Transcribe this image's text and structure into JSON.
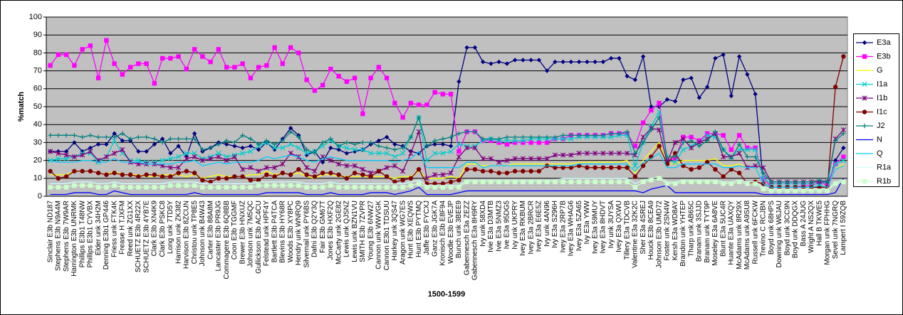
{
  "chart_data": {
    "type": "line",
    "x_label": "1500-1599",
    "y_label": "%match",
    "ylim": [
      0,
      100
    ],
    "yticks": [
      0,
      10,
      20,
      30,
      40,
      50,
      60,
      70,
      80,
      90,
      100
    ],
    "grid": true,
    "legend": "right",
    "categories": [
      "Sinclair E3b ND187",
      "Stephens E3b N9A4M",
      "Stephens E3b 7W9AR",
      "Harrington E3b UNRMK",
      "Phillips E3b1 T48NW",
      "Phillips E3b1 CYVBX",
      "Elder unk 34H2M",
      "Denning E3b1 GP446",
      "Friess unk FTK4K",
      "Frease H TJXFM",
      "Reed unk ZG1XX",
      "SCHUETZ E3b 4R22X",
      "SCHUETZ E3b 4YB7E",
      "Clark E3b XN4K9",
      "Clark E3b PSKC8",
      "Long unk 7TD5Y",
      "Harrison unk ZK382",
      "Harvison E3b 8ZCUN",
      "Christou unk TP8E5",
      "Johnson unk B4W43",
      "Carter E3b 88A8M",
      "Lancaster E3b PR9JG",
      "Commagere E3b 6Q8BB",
      "Coon E3b TGGMF",
      "Brewer E3b HNXUZ",
      "Johnson unk 7M5QC",
      "Gullickson E3b AC4CU",
      "Felstead unk HPF4Y",
      "Bartlett E3b P4TCA",
      "Blevins E3b HY68R",
      "Woods E3b XY8PC",
      "Hendry unk WNRQ9",
      "Silvernail unk PY6BS",
      "Dafni E3b Q2Y3Q",
      "Fair E3b GM67T",
      "Jones E3b HXF2Q",
      "McCarty unk 2GE82",
      "Lewis unk QJSNZ",
      "Lewis unk BZN1VU",
      "SMITH E3b 7ZVPR",
      "Young E3b 6NW27",
      "Cannon unk WWVGK",
      "Cannon E3b1 TDSUU",
      "Harkey unk 3QS47",
      "Aragon unk WG7ES",
      "Hunt E3b XEQWS",
      "Hunt E3b PYTMQ",
      "Jaffe E3b FYCXJ",
      "Ganz E3b JGK7A",
      "Kronisch E3b E8F94",
      "Woodle E3b EVEJP",
      "Bunch unk 3BEE9",
      "Gabennesch E3a ZEZZ",
      "Gabennesch E3a 8H9RY",
      "Ivy unk 58XD4",
      "Ivie E3a D3MTB",
      "Ivie E3a 5NMZ3",
      "Ive E3a 95DG5",
      "Ivy unk UKPRY",
      "Ivey E3a RKBUM",
      "Ivey E3a 2BRCR",
      "Ivey E3a E6E5Z",
      "Ivy unk 4AN96",
      "Ivy E3a S296H",
      "Ivey E3a 2RP7B",
      "Ivey E3a WHAG6",
      "Ivey E3a 5ZA65",
      "Ivy E3a YWW",
      "Ivey E3a 59MUY",
      "Ivey E3a 8HDVT",
      "Ivy unk 3UYSA",
      "Ivey E3a QXWU",
      "Tillery E3a TDCVB",
      "Valentine E3a 32K2C",
      "Sher E3a 4SREJ",
      "Houck E3b 8CEA9",
      "Johnson E3b UMD72",
      "Foster unk 2SN4W",
      "Kersh E3a WD8AY",
      "Brandon unk YHTEP",
      "Tharp unk AB65C",
      "Branam unk 3SJJD",
      "Branam unk TYT9P",
      "Moseley E3a 6A8VE",
      "Blunt E3a 5UC4R",
      "Huante E3a UAXQY",
      "McAdams unk 8R29X",
      "McAdams unk A9SU8",
      "Russell unk 6FCKW",
      "Trevino C RCJBN",
      "Boyd unk 68HPS",
      "Downing unk W6JAU",
      "Boyd unk 3CC9N",
      "Boyd unk DDQGX",
      "Bass A 24JUG",
      "Wright A NS2QX",
      "Hall B TKWE5",
      "Morgan unk FPHHG",
      "Sevel unk 7NGRQ",
      "Lampert I 59ZQB"
    ],
    "series": [
      {
        "name": "E3a",
        "color": "#000080",
        "marker": "diamond",
        "values": [
          25,
          25,
          25,
          30,
          25,
          27,
          29,
          29,
          35,
          31,
          31,
          25,
          25,
          29,
          32,
          24,
          28,
          22,
          35,
          25,
          27,
          30,
          29,
          28,
          27,
          28,
          26,
          30,
          26,
          32,
          38,
          34,
          23,
          25,
          19,
          27,
          26,
          24,
          25,
          26,
          29,
          31,
          33,
          29,
          28,
          25,
          24,
          28,
          29,
          29,
          28,
          64,
          83,
          83,
          75,
          74,
          75,
          74,
          76,
          76,
          76,
          76,
          70,
          75,
          75,
          75,
          75,
          75,
          75,
          75,
          77,
          77,
          67,
          65,
          78,
          50,
          50,
          54,
          53,
          65,
          66,
          55,
          61,
          77,
          79,
          56,
          78,
          68,
          57,
          7,
          5,
          5,
          5,
          5,
          5,
          5,
          6,
          5,
          20,
          27
        ]
      },
      {
        "name": "E3b",
        "color": "#FF00FF",
        "marker": "square",
        "values": [
          73,
          79,
          79,
          73,
          82,
          84,
          66,
          87,
          74,
          68,
          72,
          74,
          74,
          63,
          77,
          77,
          78,
          71,
          82,
          78,
          75,
          82,
          72,
          72,
          74,
          66,
          72,
          73,
          83,
          74,
          83,
          80,
          65,
          59,
          62,
          71,
          67,
          64,
          66,
          46,
          66,
          72,
          66,
          52,
          44,
          52,
          51,
          51,
          58,
          57,
          57,
          25,
          36,
          36,
          31,
          31,
          30,
          29,
          30,
          30,
          30,
          30,
          30,
          32,
          32,
          34,
          34,
          34,
          34,
          34,
          35,
          35,
          35,
          28,
          41,
          48,
          52,
          20,
          21,
          33,
          33,
          31,
          35,
          35,
          34,
          26,
          34,
          27,
          27,
          10,
          5,
          5,
          5,
          5,
          6,
          6,
          8,
          6,
          18,
          22
        ]
      },
      {
        "name": "G",
        "color": "#FFFF00",
        "marker": "none",
        "values": [
          12,
          12,
          12,
          14,
          14,
          14,
          13,
          12,
          14,
          12,
          12,
          12,
          11,
          11,
          12,
          12,
          12,
          11,
          12,
          10,
          11,
          12,
          11,
          11,
          11,
          12,
          12,
          14,
          12,
          13,
          12,
          13,
          11,
          10,
          12,
          12,
          11,
          11,
          11,
          11,
          11,
          11,
          11,
          10,
          11,
          11,
          14,
          10,
          10,
          10,
          11,
          10,
          18,
          18,
          17,
          17,
          17,
          17,
          18,
          18,
          18,
          18,
          18,
          18,
          18,
          18,
          19,
          19,
          19,
          19,
          19,
          19,
          20,
          13,
          20,
          25,
          30,
          18,
          18,
          20,
          20,
          20,
          20,
          21,
          17,
          17,
          18,
          16,
          16,
          7,
          5,
          5,
          5,
          5,
          5,
          5,
          6,
          5,
          15,
          18
        ]
      },
      {
        "name": "I1a",
        "color": "#00CCCC",
        "marker": "x",
        "values": [
          20,
          21,
          21,
          22,
          24,
          24,
          19,
          22,
          31,
          24,
          20,
          20,
          19,
          19,
          20,
          21,
          22,
          24,
          24,
          21,
          22,
          24,
          22,
          23,
          24,
          25,
          28,
          30,
          27,
          27,
          29,
          27,
          24,
          25,
          28,
          31,
          28,
          27,
          26,
          26,
          24,
          24,
          24,
          22,
          24,
          33,
          44,
          20,
          24,
          24,
          25,
          29,
          28,
          28,
          31,
          32,
          31,
          31,
          31,
          31,
          32,
          32,
          32,
          32,
          32,
          32,
          33,
          33,
          33,
          33,
          33,
          34,
          34,
          17,
          30,
          39,
          47,
          20,
          19,
          26,
          28,
          30,
          34,
          33,
          26,
          22,
          26,
          26,
          26,
          10,
          7,
          7,
          7,
          7,
          7,
          7,
          7,
          8,
          18,
          20
        ]
      },
      {
        "name": "I1b",
        "color": "#800080",
        "marker": "star",
        "values": [
          25,
          24,
          23,
          22,
          23,
          25,
          20,
          22,
          24,
          26,
          19,
          18,
          18,
          18,
          17,
          16,
          16,
          21,
          22,
          20,
          21,
          22,
          20,
          22,
          15,
          16,
          14,
          16,
          16,
          18,
          24,
          22,
          16,
          14,
          22,
          20,
          18,
          17,
          17,
          15,
          13,
          14,
          16,
          17,
          14,
          24,
          36,
          10,
          12,
          12,
          13,
          22,
          27,
          27,
          21,
          21,
          19,
          20,
          21,
          21,
          21,
          21,
          21,
          23,
          23,
          23,
          24,
          24,
          24,
          24,
          24,
          24,
          24,
          23,
          33,
          38,
          37,
          19,
          30,
          32,
          27,
          30,
          32,
          35,
          22,
          22,
          24,
          16,
          17,
          16,
          8,
          8,
          8,
          8,
          8,
          8,
          8,
          8,
          32,
          37
        ]
      },
      {
        "name": "I1c",
        "color": "#800000",
        "marker": "circle",
        "values": [
          14,
          10,
          11,
          14,
          14,
          14,
          13,
          12,
          13,
          12,
          12,
          11,
          12,
          12,
          11,
          11,
          13,
          14,
          13,
          9,
          8,
          10,
          10,
          11,
          11,
          9,
          9,
          12,
          11,
          13,
          12,
          15,
          12,
          11,
          13,
          13,
          12,
          10,
          13,
          12,
          11,
          14,
          11,
          8,
          9,
          10,
          15,
          7,
          7,
          7,
          8,
          9,
          15,
          15,
          14,
          14,
          13,
          13,
          14,
          14,
          14,
          14,
          17,
          16,
          16,
          16,
          17,
          16,
          16,
          16,
          16,
          16,
          16,
          11,
          17,
          22,
          28,
          18,
          24,
          17,
          15,
          16,
          19,
          15,
          11,
          15,
          13,
          7,
          8,
          7,
          5,
          5,
          5,
          5,
          5,
          5,
          5,
          5,
          61,
          78
        ]
      },
      {
        "name": "J2",
        "color": "#008080",
        "marker": "plus",
        "values": [
          34,
          34,
          34,
          34,
          33,
          34,
          33,
          33,
          33,
          35,
          32,
          33,
          33,
          32,
          30,
          32,
          32,
          32,
          32,
          26,
          27,
          29,
          31,
          30,
          34,
          32,
          29,
          31,
          29,
          31,
          36,
          33,
          26,
          24,
          30,
          32,
          28,
          30,
          29,
          30,
          30,
          28,
          27,
          26,
          27,
          33,
          44,
          28,
          31,
          32,
          33,
          35,
          36,
          36,
          32,
          32,
          32,
          33,
          33,
          33,
          33,
          33,
          33,
          33,
          34,
          34,
          34,
          34,
          34,
          34,
          35,
          35,
          36,
          24,
          30,
          37,
          44,
          22,
          22,
          30,
          31,
          28,
          31,
          36,
          26,
          21,
          29,
          22,
          22,
          13,
          8,
          8,
          8,
          8,
          8,
          8,
          9,
          8,
          31,
          35
        ]
      },
      {
        "name": "N",
        "color": "#0000FF",
        "marker": "none",
        "values": [
          1,
          1,
          1,
          2,
          2,
          2,
          1,
          1,
          3,
          2,
          1,
          1,
          1,
          1,
          1,
          1,
          1,
          1,
          2,
          1,
          1,
          1,
          1,
          1,
          1,
          1,
          1,
          2,
          2,
          2,
          2,
          2,
          1,
          1,
          1,
          2,
          1,
          1,
          1,
          1,
          2,
          2,
          2,
          1,
          2,
          3,
          5,
          1,
          1,
          1,
          1,
          2,
          3,
          3,
          3,
          3,
          3,
          3,
          3,
          3,
          3,
          3,
          3,
          3,
          3,
          3,
          3,
          3,
          3,
          3,
          3,
          3,
          3,
          3,
          2,
          4,
          5,
          6,
          2,
          2,
          2,
          2,
          2,
          2,
          2,
          2,
          2,
          2,
          2,
          1,
          1,
          1,
          1,
          1,
          1,
          1,
          1,
          1,
          2,
          10
        ]
      },
      {
        "name": "Q",
        "color": "#00CCFF",
        "marker": "none",
        "values": [
          20,
          19,
          19,
          19,
          20,
          20,
          19,
          19,
          21,
          19,
          19,
          19,
          18,
          18,
          18,
          18,
          19,
          19,
          20,
          17,
          18,
          19,
          18,
          19,
          19,
          19,
          20,
          22,
          21,
          22,
          23,
          22,
          20,
          19,
          21,
          22,
          21,
          20,
          20,
          20,
          20,
          20,
          20,
          19,
          20,
          21,
          25,
          16,
          16,
          16,
          16,
          16,
          19,
          19,
          16,
          17,
          17,
          17,
          17,
          17,
          17,
          17,
          17,
          17,
          17,
          17,
          18,
          18,
          18,
          18,
          18,
          18,
          18,
          14,
          19,
          21,
          24,
          16,
          16,
          18,
          18,
          18,
          18,
          18,
          16,
          16,
          17,
          16,
          16,
          7,
          5,
          5,
          5,
          5,
          5,
          5,
          6,
          5,
          15,
          17
        ]
      },
      {
        "name": "R1a",
        "color": "#CCFFFF",
        "marker": "none",
        "values": [
          7,
          7,
          7,
          8,
          8,
          8,
          7,
          7,
          8,
          7,
          7,
          7,
          7,
          7,
          7,
          8,
          8,
          8,
          8,
          7,
          7,
          7,
          7,
          7,
          7,
          7,
          8,
          8,
          8,
          8,
          8,
          8,
          7,
          7,
          7,
          8,
          7,
          7,
          7,
          7,
          7,
          7,
          7,
          7,
          7,
          8,
          9,
          6,
          6,
          6,
          6,
          6,
          9,
          9,
          9,
          9,
          9,
          9,
          9,
          9,
          9,
          9,
          9,
          9,
          10,
          10,
          10,
          10,
          10,
          10,
          10,
          10,
          10,
          7,
          9,
          10,
          11,
          8,
          8,
          9,
          9,
          9,
          9,
          9,
          8,
          8,
          9,
          8,
          8,
          5,
          4,
          4,
          4,
          4,
          4,
          4,
          4,
          4,
          8,
          9
        ]
      },
      {
        "name": "R1b",
        "color": "#CCFFCC",
        "marker": "square",
        "values": [
          5,
          5,
          5,
          6,
          6,
          6,
          5,
          5,
          6,
          5,
          5,
          5,
          5,
          5,
          5,
          6,
          6,
          6,
          6,
          5,
          5,
          5,
          5,
          5,
          5,
          5,
          6,
          6,
          6,
          6,
          6,
          6,
          5,
          5,
          5,
          6,
          5,
          5,
          5,
          5,
          5,
          5,
          5,
          5,
          5,
          6,
          7,
          5,
          5,
          5,
          5,
          5,
          8,
          8,
          8,
          8,
          8,
          8,
          8,
          8,
          8,
          8,
          8,
          8,
          8,
          8,
          8,
          8,
          8,
          8,
          8,
          8,
          8,
          5,
          8,
          9,
          10,
          7,
          7,
          8,
          8,
          8,
          8,
          8,
          7,
          7,
          8,
          7,
          7,
          4,
          3,
          3,
          3,
          3,
          3,
          3,
          3,
          3,
          7,
          8
        ]
      }
    ]
  }
}
